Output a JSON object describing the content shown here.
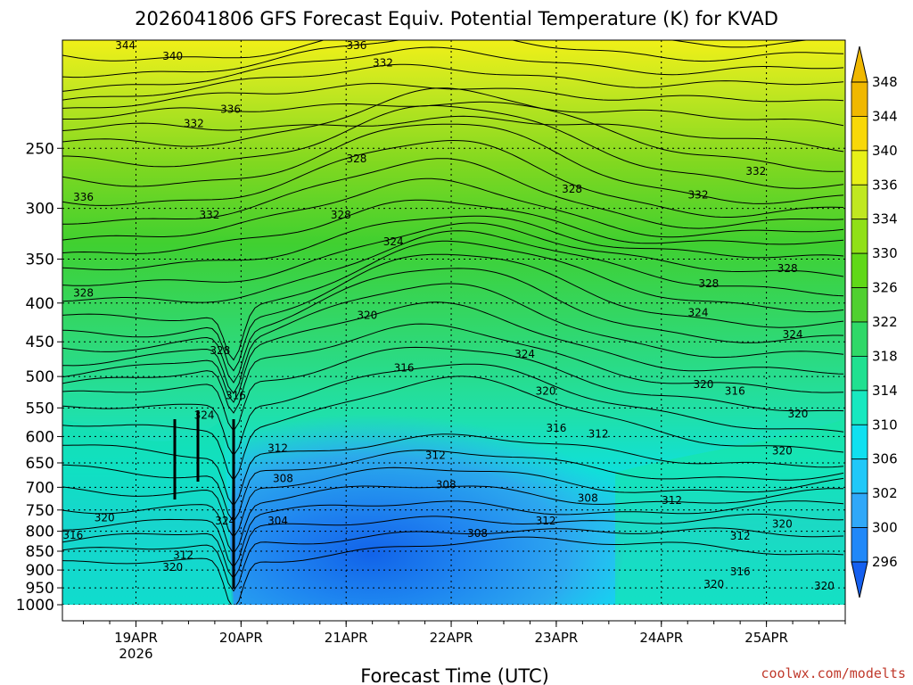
{
  "chart_data": {
    "type": "heatmap",
    "title": "2026041806 GFS Forecast Equiv. Potential Temperature (K) for KVAD",
    "xlabel": "Forecast Time (UTC)",
    "ylabel": "",
    "y_scale": "log",
    "y_inverted": true,
    "ylim": [
      1000,
      180
    ],
    "y_ticks": [
      250,
      300,
      350,
      400,
      450,
      500,
      550,
      600,
      650,
      700,
      750,
      800,
      850,
      900,
      950,
      1000
    ],
    "x_ticks": [
      {
        "label": "19APR",
        "sub": "2026",
        "day": 19
      },
      {
        "label": "20APR",
        "sub": "",
        "day": 20
      },
      {
        "label": "21APR",
        "sub": "",
        "day": 21
      },
      {
        "label": "22APR",
        "sub": "",
        "day": 22
      },
      {
        "label": "23APR",
        "sub": "",
        "day": 23
      },
      {
        "label": "24APR",
        "sub": "",
        "day": 24
      },
      {
        "label": "25APR",
        "sub": "",
        "day": 25
      }
    ],
    "xlim": [
      18.3,
      25.75
    ],
    "grid": true,
    "colorbar": {
      "labels": [
        296,
        300,
        302,
        306,
        310,
        314,
        318,
        322,
        326,
        330,
        334,
        336,
        340,
        344,
        348
      ],
      "colors": [
        "#1560f0",
        "#2088f8",
        "#30a8f8",
        "#20c8f8",
        "#10e0f0",
        "#18e8c0",
        "#20e090",
        "#30d868",
        "#50d030",
        "#60d818",
        "#90e018",
        "#c0e820",
        "#e8f018",
        "#f8d808",
        "#f0b800"
      ]
    },
    "contour_labels": [
      {
        "v": 344,
        "day": 18.9,
        "p": 183
      },
      {
        "v": 340,
        "day": 19.35,
        "p": 189
      },
      {
        "v": 336,
        "day": 21.1,
        "p": 183
      },
      {
        "v": 332,
        "day": 21.35,
        "p": 193
      },
      {
        "v": 336,
        "day": 19.9,
        "p": 222
      },
      {
        "v": 332,
        "day": 19.55,
        "p": 232
      },
      {
        "v": 328,
        "day": 21.1,
        "p": 258
      },
      {
        "v": 332,
        "day": 24.9,
        "p": 268
      },
      {
        "v": 336,
        "day": 18.5,
        "p": 290
      },
      {
        "v": 332,
        "day": 19.7,
        "p": 306
      },
      {
        "v": 328,
        "day": 20.95,
        "p": 306
      },
      {
        "v": 328,
        "day": 23.15,
        "p": 283
      },
      {
        "v": 332,
        "day": 24.35,
        "p": 288
      },
      {
        "v": 324,
        "day": 21.45,
        "p": 332
      },
      {
        "v": 328,
        "day": 25.2,
        "p": 360
      },
      {
        "v": 328,
        "day": 18.5,
        "p": 388
      },
      {
        "v": 328,
        "day": 24.45,
        "p": 377
      },
      {
        "v": 320,
        "day": 21.2,
        "p": 415
      },
      {
        "v": 324,
        "day": 24.35,
        "p": 412
      },
      {
        "v": 324,
        "day": 25.25,
        "p": 440
      },
      {
        "v": 328,
        "day": 19.8,
        "p": 462
      },
      {
        "v": 316,
        "day": 21.55,
        "p": 487
      },
      {
        "v": 324,
        "day": 22.7,
        "p": 467
      },
      {
        "v": 320,
        "day": 22.9,
        "p": 523
      },
      {
        "v": 320,
        "day": 24.4,
        "p": 512
      },
      {
        "v": 316,
        "day": 24.7,
        "p": 523
      },
      {
        "v": 320,
        "day": 25.3,
        "p": 560
      },
      {
        "v": 324,
        "day": 19.65,
        "p": 562
      },
      {
        "v": 316,
        "day": 19.95,
        "p": 530
      },
      {
        "v": 316,
        "day": 23.0,
        "p": 585
      },
      {
        "v": 312,
        "day": 23.4,
        "p": 595
      },
      {
        "v": 312,
        "day": 20.35,
        "p": 622
      },
      {
        "v": 312,
        "day": 21.85,
        "p": 635
      },
      {
        "v": 320,
        "day": 25.15,
        "p": 627
      },
      {
        "v": 308,
        "day": 20.4,
        "p": 682
      },
      {
        "v": 308,
        "day": 21.95,
        "p": 695
      },
      {
        "v": 308,
        "day": 23.3,
        "p": 723
      },
      {
        "v": 312,
        "day": 24.1,
        "p": 728
      },
      {
        "v": 320,
        "day": 18.7,
        "p": 768
      },
      {
        "v": 324,
        "day": 19.85,
        "p": 775
      },
      {
        "v": 304,
        "day": 20.35,
        "p": 775
      },
      {
        "v": 312,
        "day": 22.9,
        "p": 775
      },
      {
        "v": 308,
        "day": 22.25,
        "p": 805
      },
      {
        "v": 312,
        "day": 24.75,
        "p": 812
      },
      {
        "v": 320,
        "day": 25.15,
        "p": 783
      },
      {
        "v": 316,
        "day": 18.4,
        "p": 810
      },
      {
        "v": 312,
        "day": 19.45,
        "p": 860
      },
      {
        "v": 320,
        "day": 19.35,
        "p": 893
      },
      {
        "v": 316,
        "day": 24.75,
        "p": 905
      },
      {
        "v": 320,
        "day": 24.5,
        "p": 940
      },
      {
        "v": 320,
        "day": 25.55,
        "p": 945
      }
    ],
    "credit": "coolwx.com/modelts"
  }
}
